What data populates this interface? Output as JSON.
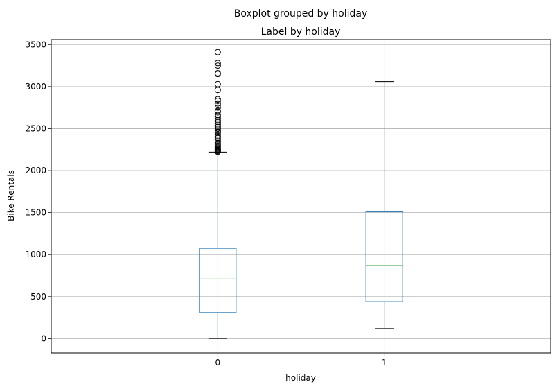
{
  "chart_data": {
    "type": "boxplot",
    "suptitle": "Boxplot grouped by holiday",
    "title": "Label by holiday",
    "xlabel": "holiday",
    "ylabel": "Bike Rentals",
    "categories": [
      "0",
      "1"
    ],
    "ylim": [
      -170,
      3560
    ],
    "yticks": [
      0,
      500,
      1000,
      1500,
      2000,
      2500,
      3000,
      3500
    ],
    "grid": true,
    "colors": {
      "box": "#1f77b4",
      "median": "#2ca02c",
      "whisker_cap": "#000000",
      "outlier": "#000000",
      "grid": "#b0b0b0"
    },
    "boxes": [
      {
        "category": "0",
        "whislo": 2,
        "q1": 310,
        "median": 710,
        "q3": 1075,
        "whishi": 2220,
        "fliers": [
          2225,
          2235,
          2245,
          2255,
          2265,
          2280,
          2295,
          2310,
          2330,
          2350,
          2370,
          2390,
          2410,
          2430,
          2450,
          2465,
          2480,
          2500,
          2520,
          2540,
          2560,
          2580,
          2600,
          2620,
          2640,
          2660,
          2700,
          2710,
          2750,
          2780,
          2800,
          2830,
          2850,
          2960,
          3030,
          3150,
          3160,
          3250,
          3280,
          3410
        ]
      },
      {
        "category": "1",
        "whislo": 120,
        "q1": 440,
        "median": 870,
        "q3": 1510,
        "whishi": 3060,
        "fliers": []
      }
    ]
  }
}
